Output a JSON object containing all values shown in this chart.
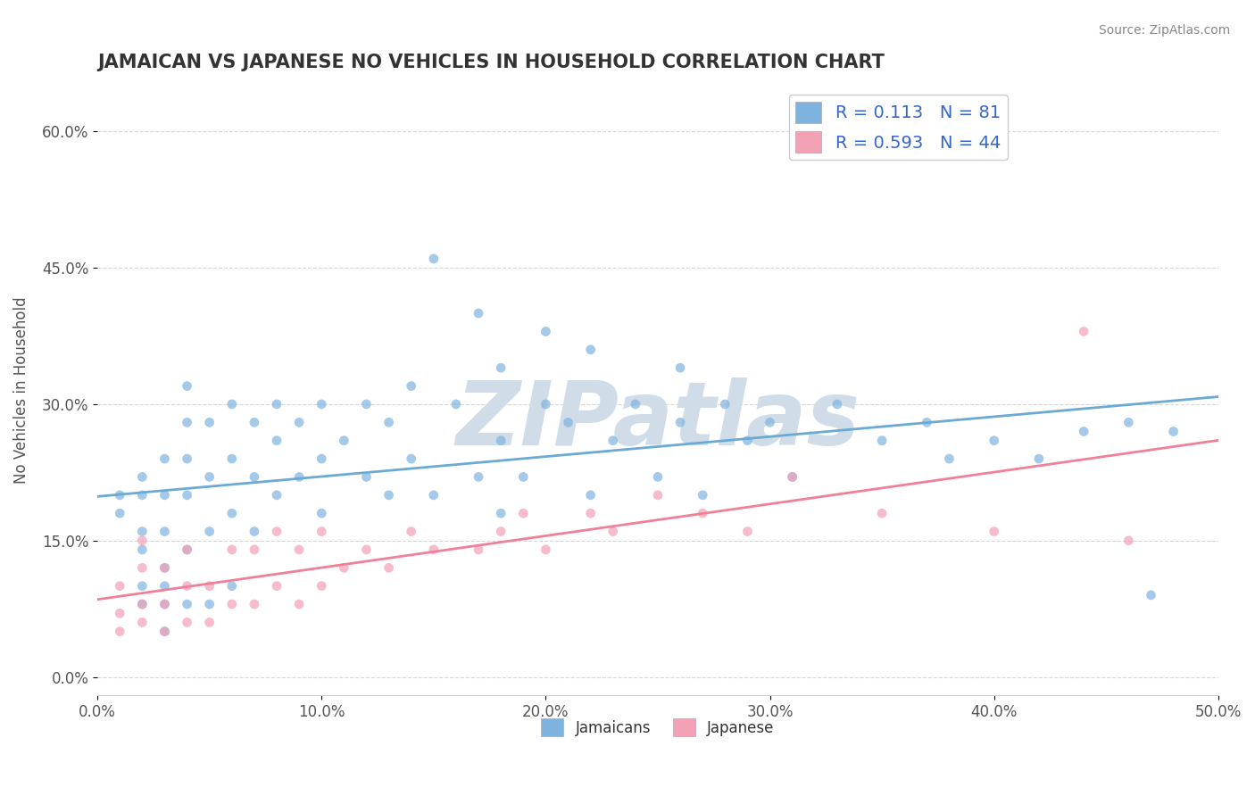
{
  "title": "JAMAICAN VS JAPANESE NO VEHICLES IN HOUSEHOLD CORRELATION CHART",
  "source_text": "Source: ZipAtlas.com",
  "xlabel": "",
  "ylabel": "No Vehicles in Household",
  "xlim": [
    0.0,
    0.5
  ],
  "ylim": [
    -0.02,
    0.65
  ],
  "xticks": [
    0.0,
    0.1,
    0.2,
    0.3,
    0.4,
    0.5
  ],
  "xticklabels": [
    "0.0%",
    "10.0%",
    "20.0%",
    "30.0%",
    "40.0%",
    "50.0%"
  ],
  "yticks": [
    0.0,
    0.15,
    0.3,
    0.45,
    0.6
  ],
  "yticklabels": [
    "0.0%",
    "15.0%",
    "30.0%",
    "45.0%",
    "60.0%"
  ],
  "legend_label1": "Jamaicans",
  "legend_label2": "Japanese",
  "legend_r1": "0.113",
  "legend_n1": "81",
  "legend_r2": "0.593",
  "legend_n2": "44",
  "color_jamaican": "#7eb3e0",
  "color_japanese": "#f4a0b5",
  "color_line_jamaican": "#6aaad4",
  "color_line_japanese": "#f08098",
  "watermark": "ZIPatlas",
  "watermark_color": "#d0dde8",
  "background_color": "#ffffff",
  "grid_color": "#cccccc",
  "title_color": "#333333",
  "jamaican_x": [
    0.01,
    0.01,
    0.02,
    0.02,
    0.02,
    0.02,
    0.02,
    0.02,
    0.03,
    0.03,
    0.03,
    0.03,
    0.03,
    0.03,
    0.03,
    0.04,
    0.04,
    0.04,
    0.04,
    0.04,
    0.04,
    0.05,
    0.05,
    0.05,
    0.05,
    0.06,
    0.06,
    0.06,
    0.06,
    0.07,
    0.07,
    0.07,
    0.08,
    0.08,
    0.08,
    0.09,
    0.09,
    0.1,
    0.1,
    0.1,
    0.11,
    0.12,
    0.12,
    0.13,
    0.13,
    0.14,
    0.14,
    0.15,
    0.15,
    0.16,
    0.17,
    0.17,
    0.18,
    0.18,
    0.18,
    0.19,
    0.2,
    0.2,
    0.21,
    0.22,
    0.22,
    0.23,
    0.24,
    0.25,
    0.26,
    0.26,
    0.27,
    0.28,
    0.29,
    0.3,
    0.31,
    0.33,
    0.35,
    0.37,
    0.38,
    0.4,
    0.42,
    0.44,
    0.46,
    0.47,
    0.48
  ],
  "jamaican_y": [
    0.18,
    0.2,
    0.08,
    0.1,
    0.14,
    0.16,
    0.2,
    0.22,
    0.05,
    0.08,
    0.1,
    0.12,
    0.16,
    0.2,
    0.24,
    0.08,
    0.14,
    0.2,
    0.24,
    0.28,
    0.32,
    0.08,
    0.16,
    0.22,
    0.28,
    0.1,
    0.18,
    0.24,
    0.3,
    0.16,
    0.22,
    0.28,
    0.2,
    0.26,
    0.3,
    0.22,
    0.28,
    0.18,
    0.24,
    0.3,
    0.26,
    0.22,
    0.3,
    0.2,
    0.28,
    0.24,
    0.32,
    0.2,
    0.46,
    0.3,
    0.22,
    0.4,
    0.18,
    0.26,
    0.34,
    0.22,
    0.3,
    0.38,
    0.28,
    0.2,
    0.36,
    0.26,
    0.3,
    0.22,
    0.28,
    0.34,
    0.2,
    0.3,
    0.26,
    0.28,
    0.22,
    0.3,
    0.26,
    0.28,
    0.24,
    0.26,
    0.24,
    0.27,
    0.28,
    0.09,
    0.27
  ],
  "japanese_x": [
    0.01,
    0.01,
    0.01,
    0.02,
    0.02,
    0.02,
    0.02,
    0.03,
    0.03,
    0.03,
    0.04,
    0.04,
    0.04,
    0.05,
    0.05,
    0.06,
    0.06,
    0.07,
    0.07,
    0.08,
    0.08,
    0.09,
    0.09,
    0.1,
    0.1,
    0.11,
    0.12,
    0.13,
    0.14,
    0.15,
    0.17,
    0.18,
    0.19,
    0.2,
    0.22,
    0.23,
    0.25,
    0.27,
    0.29,
    0.31,
    0.35,
    0.4,
    0.44,
    0.46
  ],
  "japanese_y": [
    0.05,
    0.07,
    0.1,
    0.06,
    0.08,
    0.12,
    0.15,
    0.05,
    0.08,
    0.12,
    0.06,
    0.1,
    0.14,
    0.06,
    0.1,
    0.08,
    0.14,
    0.08,
    0.14,
    0.1,
    0.16,
    0.08,
    0.14,
    0.1,
    0.16,
    0.12,
    0.14,
    0.12,
    0.16,
    0.14,
    0.14,
    0.16,
    0.18,
    0.14,
    0.18,
    0.16,
    0.2,
    0.18,
    0.16,
    0.22,
    0.18,
    0.16,
    0.38,
    0.15
  ]
}
